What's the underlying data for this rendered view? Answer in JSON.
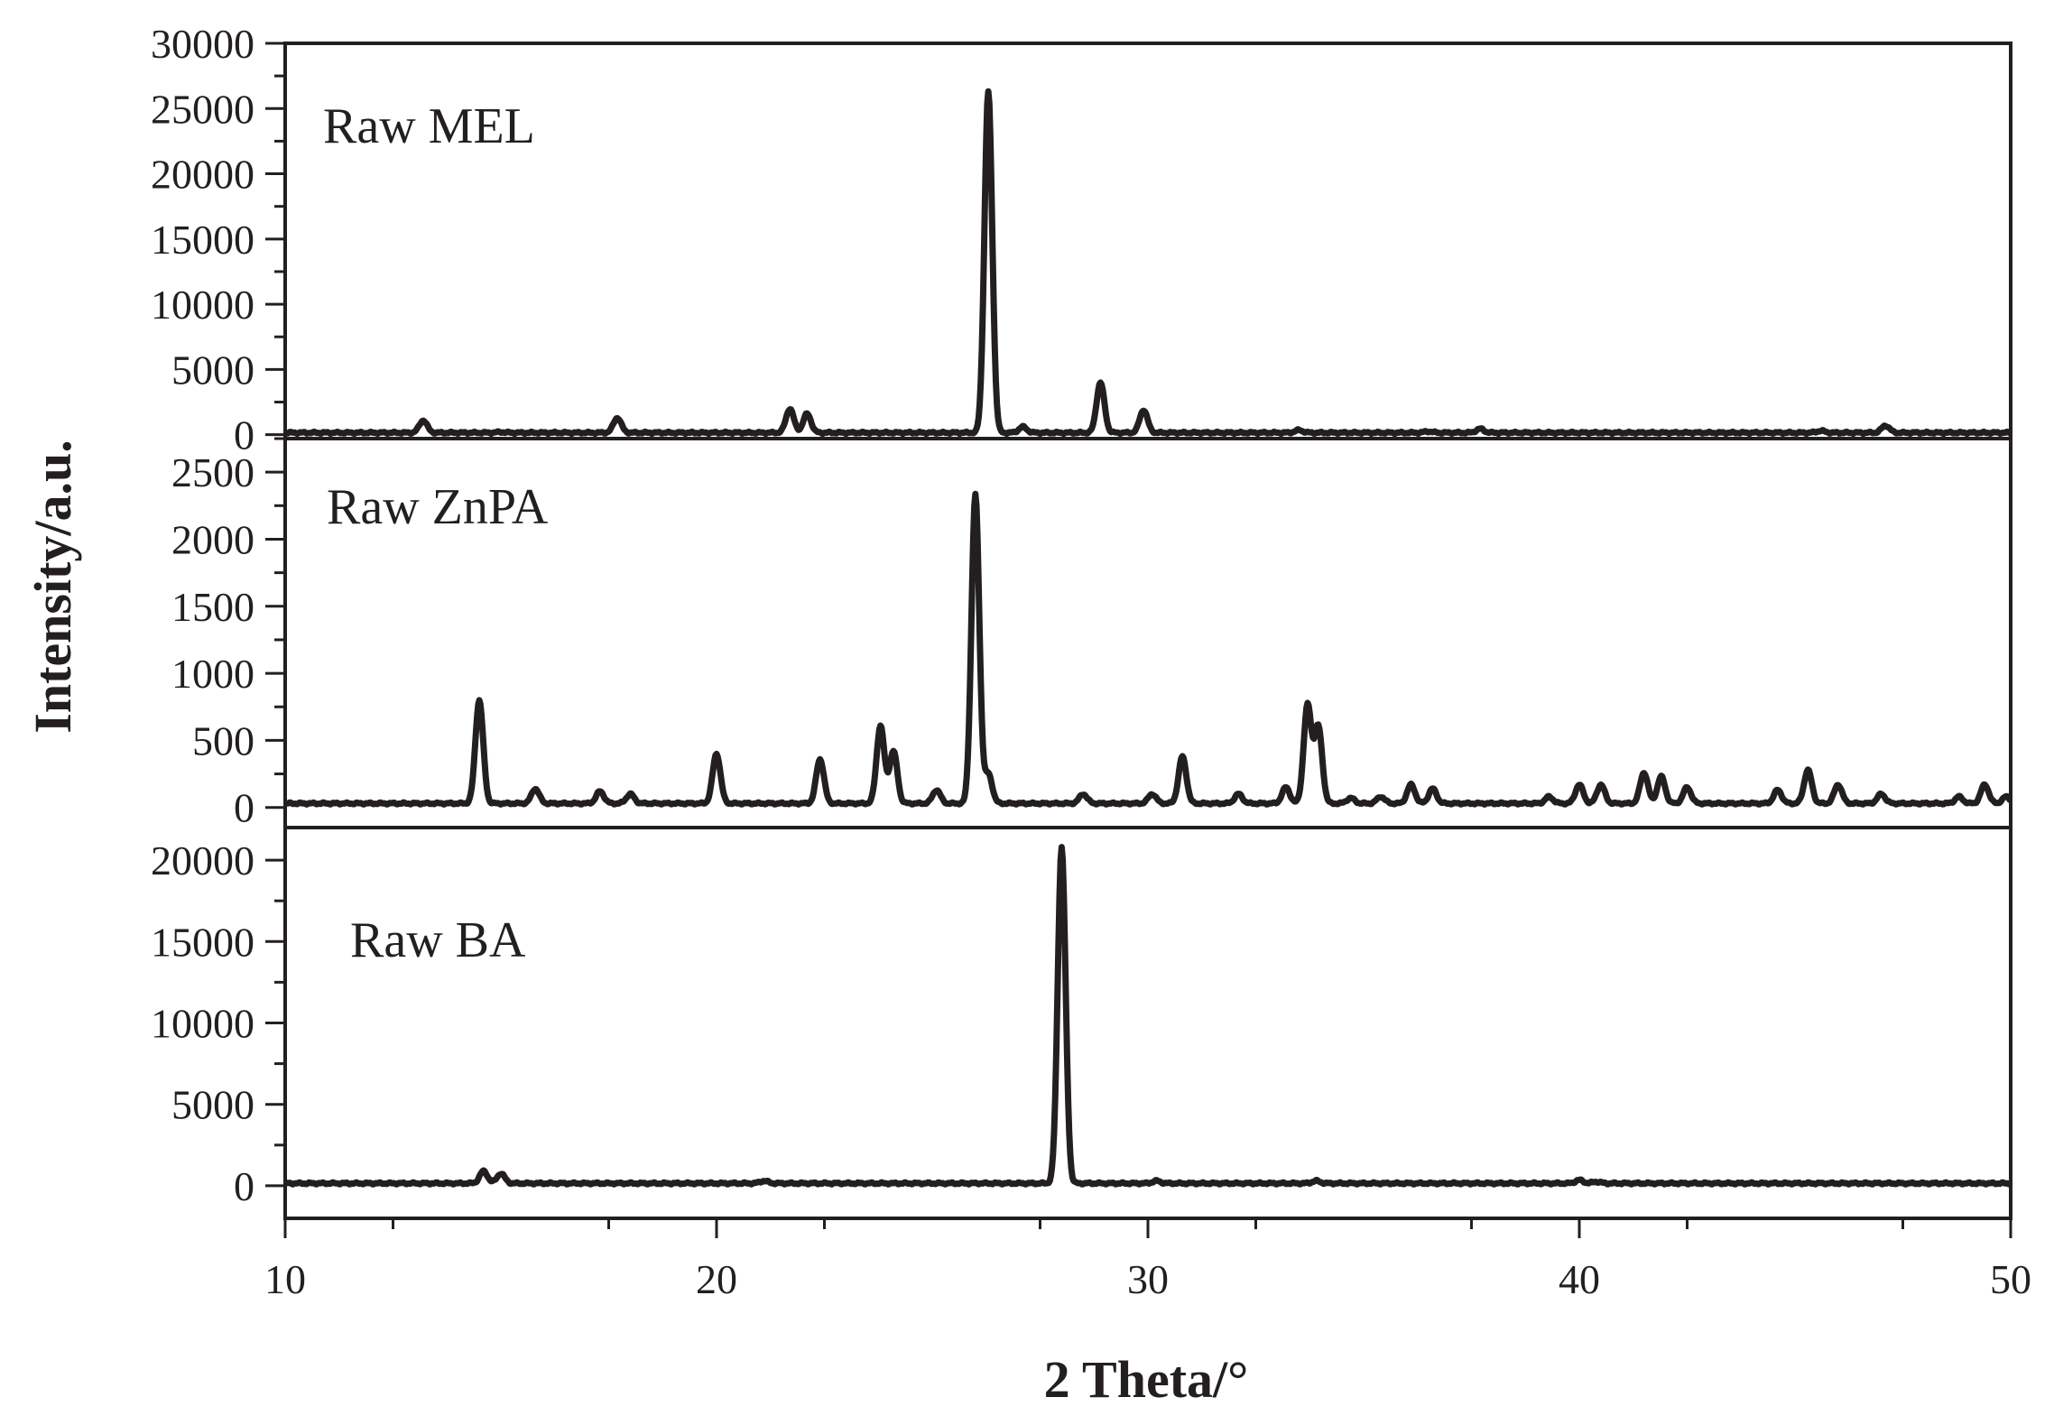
{
  "chart_data": {
    "type": "line",
    "layout": "stacked-panels",
    "xlabel": "2 Theta/°",
    "ylabel": "Intensity/a.u.",
    "xlim": [
      10,
      50
    ],
    "x_ticks": [
      "10",
      "20",
      "30",
      "40",
      "50"
    ],
    "line_color": "#231f20",
    "panels": [
      {
        "label": "Raw MEL",
        "ylim": [
          -300,
          30000
        ],
        "y_ticks": [
          "0",
          "5000",
          "10000",
          "15000",
          "20000",
          "25000",
          "30000"
        ],
        "baseline": 150,
        "peaks": [
          {
            "x": 13.2,
            "y": 1100
          },
          {
            "x": 15.0,
            "y": 200
          },
          {
            "x": 17.7,
            "y": 1300
          },
          {
            "x": 21.7,
            "y": 2000
          },
          {
            "x": 22.1,
            "y": 1600
          },
          {
            "x": 26.3,
            "y": 26300
          },
          {
            "x": 27.1,
            "y": 600
          },
          {
            "x": 28.9,
            "y": 4000
          },
          {
            "x": 29.9,
            "y": 1900
          },
          {
            "x": 33.5,
            "y": 350
          },
          {
            "x": 36.5,
            "y": 250
          },
          {
            "x": 37.7,
            "y": 450
          },
          {
            "x": 45.6,
            "y": 300
          },
          {
            "x": 47.1,
            "y": 700
          }
        ]
      },
      {
        "label": "Raw ZnPA",
        "ylim": [
          -150,
          2750
        ],
        "y_ticks": [
          "0",
          "500",
          "1000",
          "1500",
          "2000",
          "2500"
        ],
        "baseline": 30,
        "peaks": [
          {
            "x": 14.5,
            "y": 800
          },
          {
            "x": 15.8,
            "y": 140
          },
          {
            "x": 17.3,
            "y": 120
          },
          {
            "x": 18.0,
            "y": 100
          },
          {
            "x": 20.0,
            "y": 400
          },
          {
            "x": 22.4,
            "y": 360
          },
          {
            "x": 23.8,
            "y": 610
          },
          {
            "x": 24.1,
            "y": 420
          },
          {
            "x": 25.1,
            "y": 130
          },
          {
            "x": 26.0,
            "y": 2330
          },
          {
            "x": 26.3,
            "y": 250
          },
          {
            "x": 28.5,
            "y": 100
          },
          {
            "x": 30.1,
            "y": 100
          },
          {
            "x": 30.8,
            "y": 380
          },
          {
            "x": 32.1,
            "y": 100
          },
          {
            "x": 33.2,
            "y": 150
          },
          {
            "x": 33.7,
            "y": 760
          },
          {
            "x": 33.95,
            "y": 600
          },
          {
            "x": 34.7,
            "y": 70
          },
          {
            "x": 35.4,
            "y": 80
          },
          {
            "x": 36.1,
            "y": 170
          },
          {
            "x": 36.6,
            "y": 140
          },
          {
            "x": 39.3,
            "y": 80
          },
          {
            "x": 40.0,
            "y": 170
          },
          {
            "x": 40.5,
            "y": 170
          },
          {
            "x": 41.5,
            "y": 260
          },
          {
            "x": 41.9,
            "y": 230
          },
          {
            "x": 42.5,
            "y": 150
          },
          {
            "x": 44.6,
            "y": 130
          },
          {
            "x": 45.3,
            "y": 280
          },
          {
            "x": 46.0,
            "y": 170
          },
          {
            "x": 47.0,
            "y": 100
          },
          {
            "x": 48.8,
            "y": 80
          },
          {
            "x": 49.4,
            "y": 170
          },
          {
            "x": 49.9,
            "y": 80
          }
        ]
      },
      {
        "label": "Raw BA",
        "ylim": [
          -2000,
          22000
        ],
        "y_ticks": [
          "0",
          "5000",
          "10000",
          "15000",
          "20000"
        ],
        "baseline": 150,
        "peaks": [
          {
            "x": 14.6,
            "y": 900
          },
          {
            "x": 15.0,
            "y": 750
          },
          {
            "x": 21.1,
            "y": 300
          },
          {
            "x": 28.0,
            "y": 20800
          },
          {
            "x": 30.2,
            "y": 300
          },
          {
            "x": 33.9,
            "y": 300
          },
          {
            "x": 40.0,
            "y": 350
          },
          {
            "x": 40.4,
            "y": 250
          }
        ]
      }
    ]
  }
}
